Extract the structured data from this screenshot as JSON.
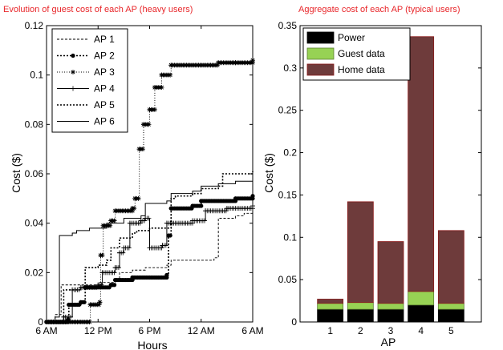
{
  "colors": {
    "title": "#e8262a",
    "power": "#000000",
    "guest": "#97d254",
    "home": "#6e3b3b"
  },
  "chart_data": [
    {
      "type": "line",
      "title": "Evolution of guest cost of each AP (heavy users)",
      "xlabel": "Hours",
      "ylabel": "Cost ($)",
      "xlim": [
        0,
        24
      ],
      "ylim": [
        0,
        0.12
      ],
      "x_ticks": [
        0,
        6,
        12,
        18,
        24
      ],
      "x_tick_labels": [
        "6 AM",
        "12 PM",
        "6 PM",
        "12 AM",
        "6 AM"
      ],
      "y_ticks": [
        0,
        0.02,
        0.04,
        0.06,
        0.08,
        0.1,
        0.12
      ],
      "y_tick_labels": [
        "0",
        "0.02",
        "0.04",
        "0.06",
        "0.08",
        "0.1",
        "0.12"
      ],
      "legend_position": "top-left",
      "series": [
        {
          "name": "AP 1",
          "style": "dashed",
          "points": [
            [
              0,
              0
            ],
            [
              1,
              0.003
            ],
            [
              1.7,
              0.015
            ],
            [
              6,
              0.016
            ],
            [
              8,
              0.017
            ],
            [
              8.5,
              0.02
            ],
            [
              10,
              0.021
            ],
            [
              11.5,
              0.022
            ],
            [
              14,
              0.023
            ],
            [
              14.5,
              0.025
            ],
            [
              19.5,
              0.026
            ],
            [
              20,
              0.042
            ],
            [
              22,
              0.043
            ],
            [
              23,
              0.044
            ],
            [
              24,
              0.044
            ]
          ]
        },
        {
          "name": "AP 2",
          "style": "dotted-dot-marker",
          "points": [
            [
              0,
              0
            ],
            [
              2.5,
              0.001
            ],
            [
              2.6,
              0.007
            ],
            [
              4,
              0.008
            ],
            [
              4.5,
              0.014
            ],
            [
              7.5,
              0.015
            ],
            [
              8,
              0.017
            ],
            [
              10,
              0.018
            ],
            [
              14,
              0.019
            ],
            [
              14.2,
              0.035
            ],
            [
              14.5,
              0.046
            ],
            [
              17,
              0.047
            ],
            [
              18,
              0.049
            ],
            [
              22,
              0.05
            ],
            [
              24,
              0.051
            ]
          ]
        },
        {
          "name": "AP 3",
          "style": "dotted-star-marker",
          "points": [
            [
              0,
              0
            ],
            [
              5,
              0
            ],
            [
              5.1,
              0.007
            ],
            [
              6.2,
              0.008
            ],
            [
              6.3,
              0.027
            ],
            [
              6.6,
              0.039
            ],
            [
              7.5,
              0.041
            ],
            [
              8,
              0.045
            ],
            [
              10,
              0.046
            ],
            [
              10.3,
              0.05
            ],
            [
              10.8,
              0.07
            ],
            [
              11.3,
              0.08
            ],
            [
              12,
              0.086
            ],
            [
              12.6,
              0.095
            ],
            [
              13.4,
              0.1
            ],
            [
              14.5,
              0.104
            ],
            [
              20,
              0.105
            ],
            [
              22,
              0.105
            ],
            [
              24,
              0.106
            ]
          ]
        },
        {
          "name": "AP 4",
          "style": "solid-plus-marker",
          "points": [
            [
              0,
              0
            ],
            [
              2,
              0.002
            ],
            [
              3,
              0.013
            ],
            [
              4,
              0.014
            ],
            [
              6,
              0.015
            ],
            [
              6.5,
              0.02
            ],
            [
              8,
              0.022
            ],
            [
              8.5,
              0.028
            ],
            [
              9,
              0.03
            ],
            [
              9.7,
              0.04
            ],
            [
              11,
              0.041
            ],
            [
              11.5,
              0.042
            ],
            [
              12,
              0.03
            ],
            [
              13.5,
              0.031
            ],
            [
              14,
              0.04
            ],
            [
              17,
              0.041
            ],
            [
              18.5,
              0.045
            ],
            [
              21,
              0.046
            ],
            [
              24,
              0.047
            ]
          ]
        },
        {
          "name": "AP 5",
          "style": "dotted",
          "points": [
            [
              0,
              0
            ],
            [
              2,
              0.013
            ],
            [
              4,
              0.014
            ],
            [
              4.5,
              0.022
            ],
            [
              6,
              0.023
            ],
            [
              7,
              0.025
            ],
            [
              7.5,
              0.03
            ],
            [
              8.5,
              0.034
            ],
            [
              10,
              0.036
            ],
            [
              10.5,
              0.037
            ],
            [
              12,
              0.038
            ],
            [
              14.5,
              0.05
            ],
            [
              15,
              0.051
            ],
            [
              17,
              0.052
            ],
            [
              18,
              0.054
            ],
            [
              20,
              0.055
            ],
            [
              20.5,
              0.06
            ],
            [
              24,
              0.061
            ]
          ]
        },
        {
          "name": "AP 6",
          "style": "solid",
          "points": [
            [
              0,
              0
            ],
            [
              1,
              0.002
            ],
            [
              1.5,
              0.035
            ],
            [
              3,
              0.036
            ],
            [
              3.5,
              0.037
            ],
            [
              5,
              0.038
            ],
            [
              7,
              0.04
            ],
            [
              9,
              0.042
            ],
            [
              11,
              0.043
            ],
            [
              11.5,
              0.048
            ],
            [
              14,
              0.049
            ],
            [
              14.5,
              0.052
            ],
            [
              17,
              0.053
            ],
            [
              18,
              0.055
            ],
            [
              20,
              0.056
            ],
            [
              22,
              0.057
            ],
            [
              24,
              0.058
            ]
          ]
        }
      ]
    },
    {
      "type": "bar",
      "stacked": true,
      "title": "Aggregate cost of each AP (typical users)",
      "xlabel": "AP",
      "ylabel": "Cost ($)",
      "ylim": [
        0,
        0.35
      ],
      "y_ticks": [
        0,
        0.05,
        0.1,
        0.15,
        0.2,
        0.25,
        0.3,
        0.35
      ],
      "y_tick_labels": [
        "0",
        "0.05",
        "0.1",
        "0.15",
        "0.2",
        "0.25",
        "0.3",
        "0.35"
      ],
      "categories": [
        "1",
        "2",
        "3",
        "4",
        "5"
      ],
      "legend_position": "top-left",
      "series": [
        {
          "name": "Power",
          "values": [
            0.015,
            0.015,
            0.015,
            0.02,
            0.015
          ]
        },
        {
          "name": "Guest data",
          "values": [
            0.007,
            0.008,
            0.007,
            0.016,
            0.007
          ]
        },
        {
          "name": "Home data",
          "values": [
            0.005,
            0.119,
            0.073,
            0.301,
            0.086
          ]
        }
      ]
    }
  ]
}
